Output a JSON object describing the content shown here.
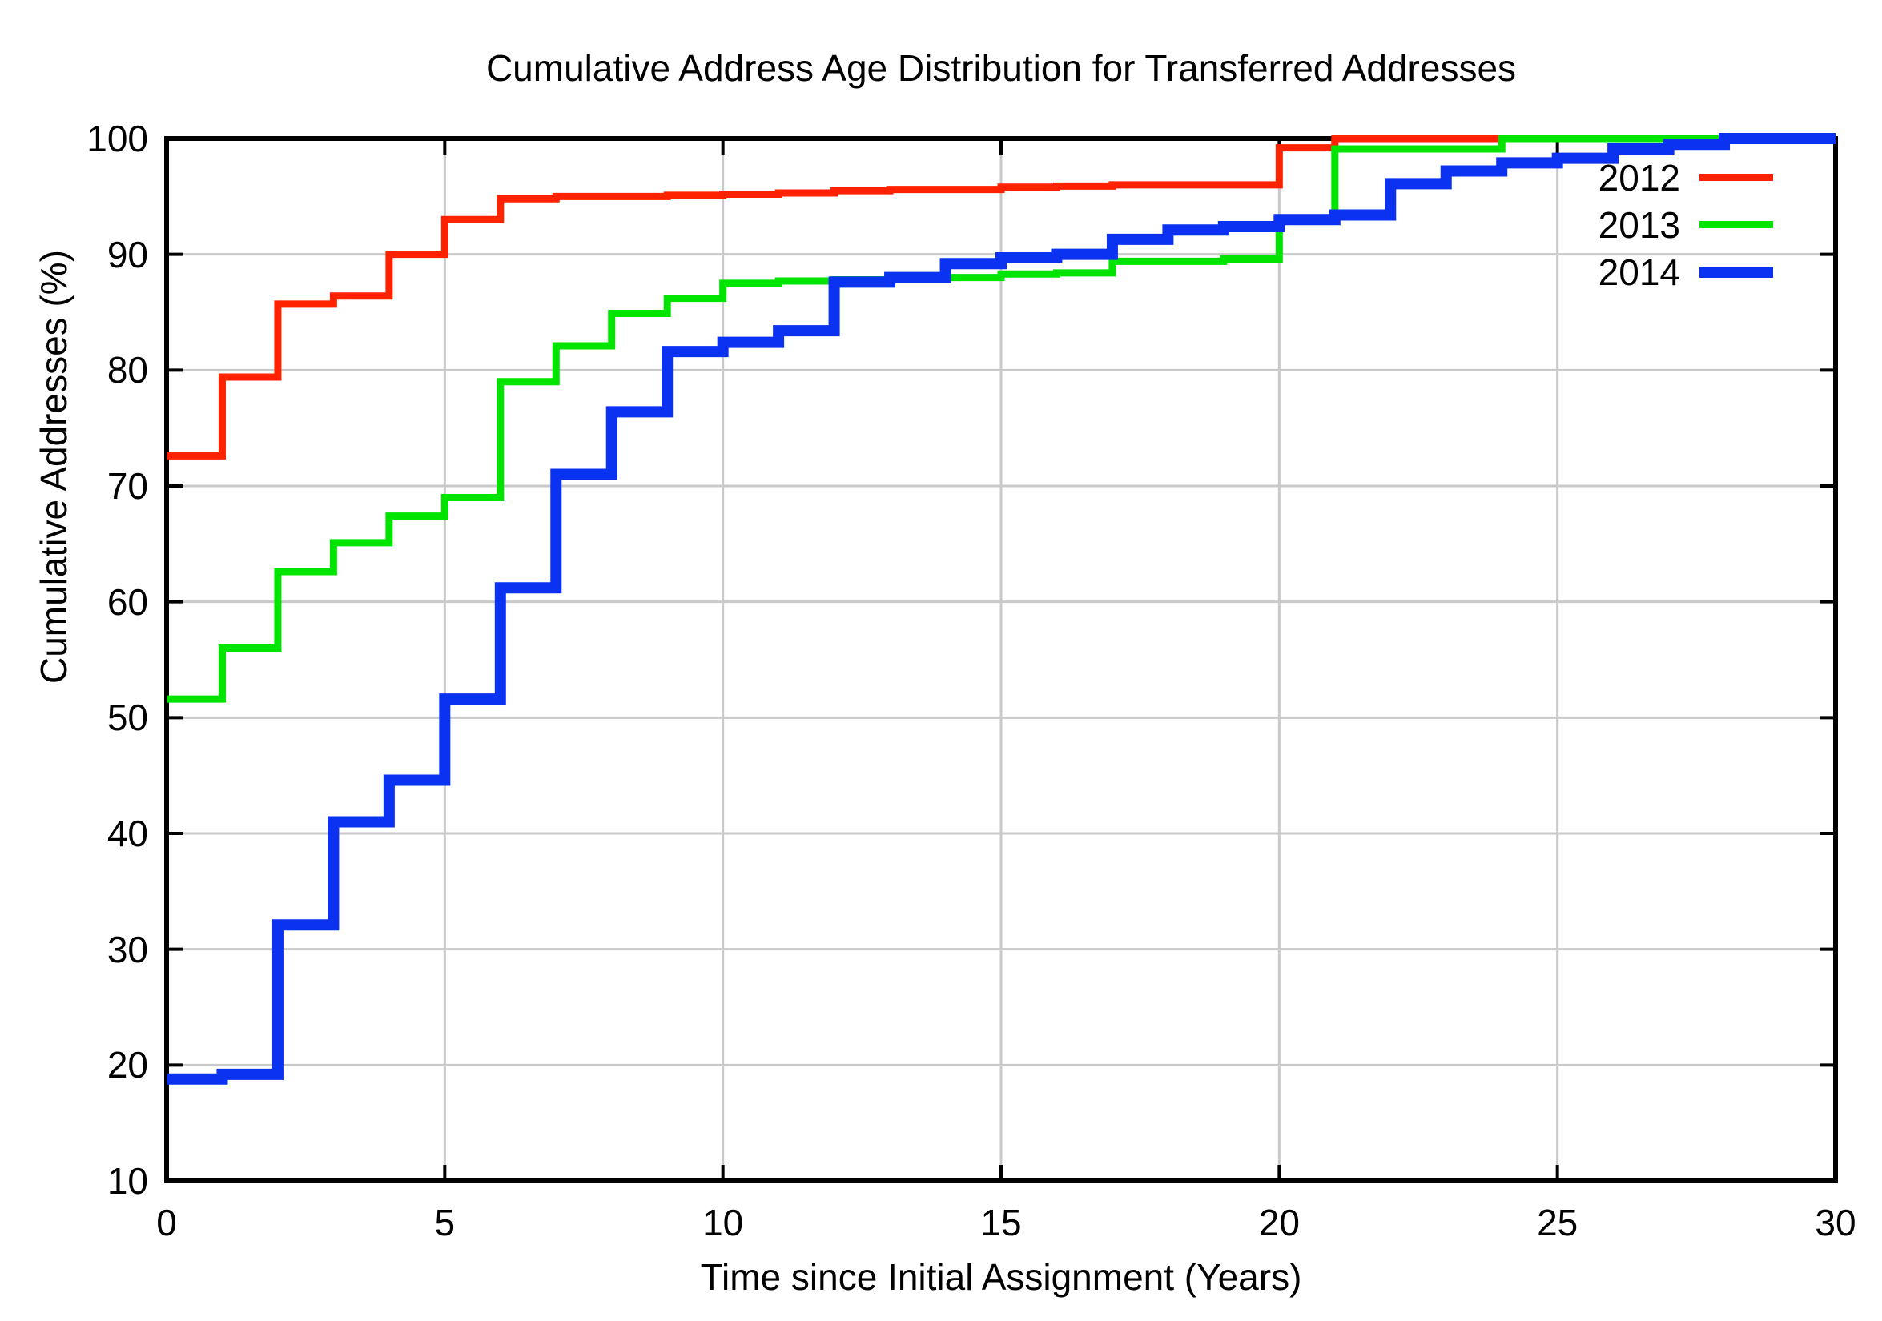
{
  "title": "Cumulative Address Age Distribution for Transferred Addresses",
  "x_axis": {
    "label": "Time since Initial Assignment (Years)",
    "ticks": [
      0,
      5,
      10,
      15,
      20,
      25,
      30
    ],
    "min": 0,
    "max": 30
  },
  "y_axis": {
    "label": "Cumulative Addresses (%)",
    "ticks": [
      10,
      20,
      30,
      40,
      50,
      60,
      70,
      80,
      90,
      100
    ],
    "min": 10,
    "max": 100
  },
  "legend": {
    "position": "top-right",
    "items": [
      {
        "label": "2012",
        "color": "#ff2200",
        "thickness": 9
      },
      {
        "label": "2013",
        "color": "#00e400",
        "thickness": 9
      },
      {
        "label": "2014",
        "color": "#0a32f0",
        "thickness": 14
      }
    ]
  },
  "chart_data": {
    "type": "line",
    "subtype": "step-cdf",
    "title": "Cumulative Address Age Distribution for Transferred Addresses",
    "xlabel": "Time since Initial Assignment (Years)",
    "ylabel": "Cumulative Addresses (%)",
    "xlim": [
      0,
      30
    ],
    "ylim": [
      10,
      100
    ],
    "grid": true,
    "legend_position": "top-right",
    "x_years": [
      0,
      1,
      2,
      3,
      4,
      5,
      6,
      7,
      8,
      9,
      10,
      11,
      12,
      13,
      14,
      15,
      16,
      17,
      18,
      19,
      20,
      21,
      22,
      23,
      24,
      25,
      26,
      27,
      28,
      29,
      30
    ],
    "series": [
      {
        "name": "2012",
        "color": "#ff2200",
        "width": 9,
        "values": [
          72.6,
          79.4,
          85.7,
          86.4,
          90.0,
          93.0,
          94.8,
          95.0,
          95.0,
          95.1,
          95.2,
          95.3,
          95.5,
          95.6,
          95.6,
          95.8,
          95.9,
          96.0,
          96.0,
          96.0,
          99.2,
          100.0,
          100.0,
          100.0,
          100.0,
          100.0,
          100.0,
          100.0,
          100.0,
          100.0,
          100.0
        ]
      },
      {
        "name": "2013",
        "color": "#00e400",
        "width": 9,
        "values": [
          51.6,
          56.0,
          62.6,
          65.1,
          67.4,
          69.0,
          79.0,
          82.1,
          84.9,
          86.2,
          87.5,
          87.7,
          87.8,
          87.9,
          88.0,
          88.3,
          88.4,
          89.4,
          89.4,
          89.6,
          93.0,
          99.1,
          99.1,
          99.1,
          100.0,
          100.0,
          100.0,
          100.0,
          100.0,
          100.0,
          100.0
        ]
      },
      {
        "name": "2014",
        "color": "#0a32f0",
        "width": 14,
        "values": [
          18.8,
          19.2,
          32.1,
          41.0,
          44.6,
          51.6,
          61.2,
          71.0,
          76.4,
          81.6,
          82.4,
          83.4,
          87.6,
          88.0,
          89.2,
          89.7,
          90.0,
          91.3,
          92.1,
          92.4,
          93.0,
          93.4,
          96.1,
          97.2,
          97.9,
          98.3,
          99.1,
          99.5,
          100.0,
          100.0,
          100.0
        ]
      }
    ],
    "style": {
      "grid_color": "#c9c9c9",
      "frame_color": "#000000",
      "background": "#ffffff"
    }
  }
}
